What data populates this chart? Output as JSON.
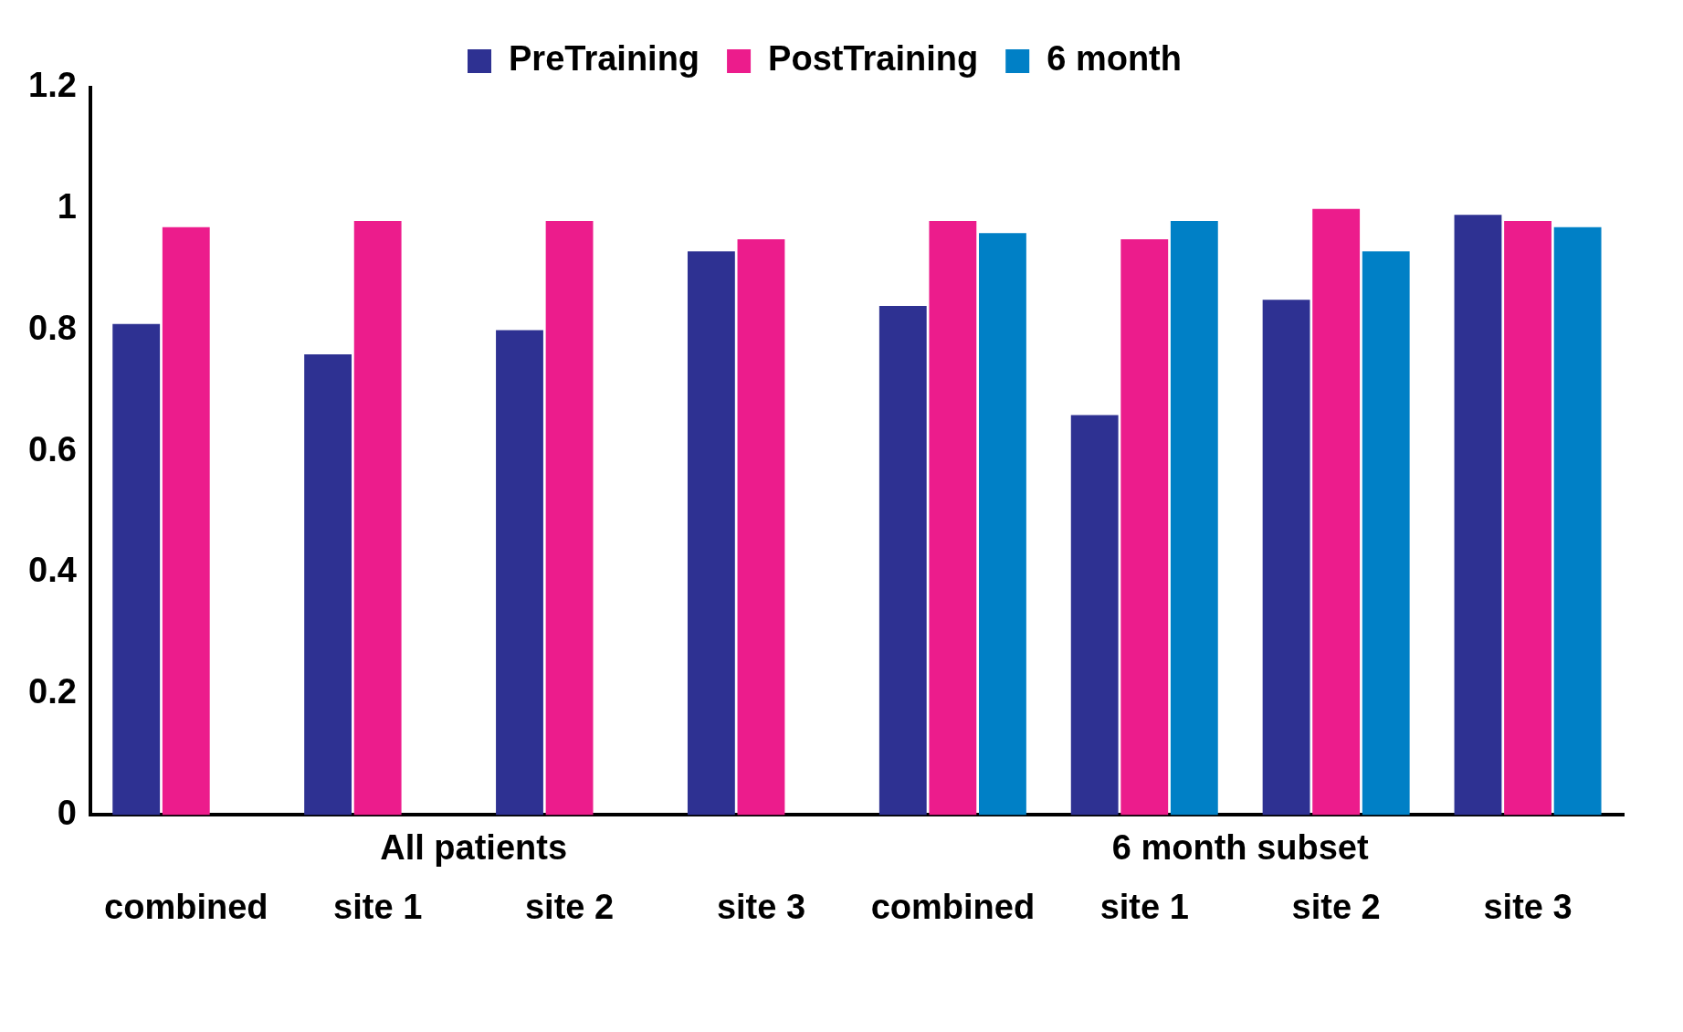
{
  "chart_data": {
    "type": "bar",
    "categories": [
      "combined",
      "site 1",
      "site 2",
      "site 3",
      "combined",
      "site 1",
      "site 2",
      "site 3"
    ],
    "series": [
      {
        "name": "PreTraining",
        "color": "#2e3192",
        "values": [
          0.81,
          0.76,
          0.8,
          0.93,
          0.84,
          0.66,
          0.85,
          0.99
        ]
      },
      {
        "name": "PostTraining",
        "color": "#ec1c8c",
        "values": [
          0.97,
          0.98,
          0.98,
          0.95,
          0.98,
          0.95,
          1.0,
          0.98
        ]
      },
      {
        "name": "6 month",
        "color": "#0080c6",
        "values": [
          null,
          null,
          null,
          null,
          0.96,
          0.98,
          0.93,
          0.97
        ]
      }
    ],
    "ylim": [
      0,
      1.2
    ],
    "yticks": [
      0,
      0.2,
      0.4,
      0.6,
      0.8,
      1,
      1.2
    ],
    "grid": false,
    "legend": "top",
    "annotations": [
      "All patients",
      "6 month subset"
    ]
  }
}
